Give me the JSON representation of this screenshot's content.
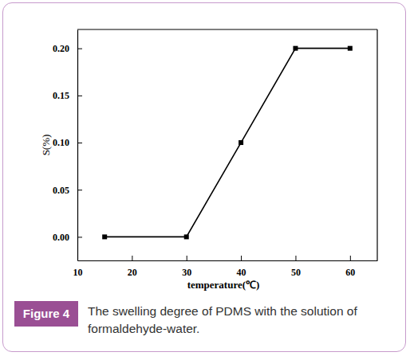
{
  "chart_data": {
    "type": "line",
    "x": [
      15,
      30,
      40,
      50,
      60
    ],
    "values": [
      0,
      0,
      0.1,
      0.2,
      0.2
    ],
    "x_label": "temperature(℃)",
    "y_label": "S(%)",
    "xlim": [
      10,
      65
    ],
    "ylim": [
      -0.025,
      0.22
    ],
    "xticks": [
      10,
      20,
      30,
      40,
      50,
      60
    ],
    "yticks": [
      {
        "value": 0,
        "label": "0.00"
      },
      0.05,
      {
        "value": 0.1,
        "label": "0.10"
      },
      0.15,
      {
        "value": 0.2,
        "label": "0.20"
      }
    ],
    "color": "#000000",
    "marker": "square",
    "line_style": "solid",
    "grid": false
  },
  "figure": {
    "label": "Figure 4",
    "caption": "The swelling degree of PDMS with the solution of formaldehyde-water."
  }
}
